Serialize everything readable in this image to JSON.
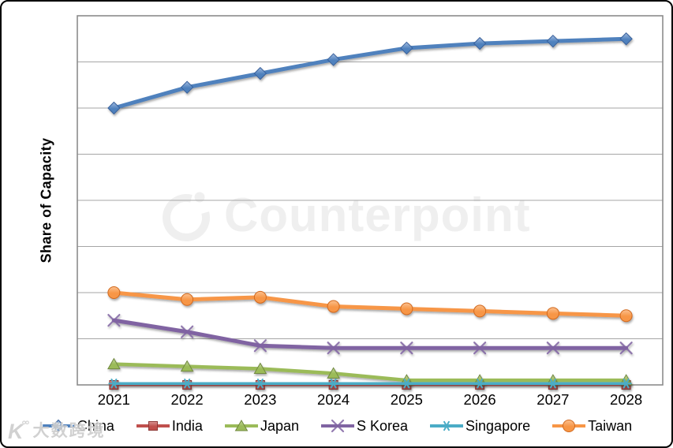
{
  "watermarks": {
    "center_brand": "Counterpoint",
    "footer_logo_main": "K",
    "footer_logo_sup": "°°",
    "footer_text": "大数跨境"
  },
  "chart_data": {
    "type": "line",
    "title": "",
    "ylabel": "Share of Capacity",
    "xlabel": "",
    "x": [
      "2021",
      "2022",
      "2023",
      "2024",
      "2025",
      "2026",
      "2027",
      "2028"
    ],
    "ylim": [
      0,
      80
    ],
    "y_gridline_step": 10,
    "y_tick_labels_visible": false,
    "grid": true,
    "legend_position": "bottom",
    "grid_color": "#a6a6a6",
    "border_color": "#8c8c8c",
    "series": [
      {
        "name": "China",
        "marker": "diamond",
        "color": "#4F81BD",
        "dark": "#38619C",
        "light": "#A3BCE0",
        "values": [
          60,
          64.5,
          67.5,
          70.5,
          73,
          74,
          74.5,
          75
        ]
      },
      {
        "name": "India",
        "marker": "square",
        "color": "#C0504D",
        "dark": "#8E3836",
        "light": "#D99694",
        "values": [
          0,
          0,
          0,
          0,
          0,
          0,
          0,
          0
        ]
      },
      {
        "name": "Japan",
        "marker": "triangle",
        "color": "#9BBB59",
        "dark": "#71893F",
        "light": "#C6D8A0",
        "values": [
          4.5,
          4,
          3.5,
          2.5,
          1,
          1,
          1,
          1
        ]
      },
      {
        "name": "S Korea",
        "marker": "x",
        "color": "#8064A2",
        "dark": "#5E4A78",
        "light": "#B2A2C7",
        "values": [
          14,
          11.5,
          8.5,
          8,
          8,
          8,
          8,
          8
        ]
      },
      {
        "name": "Singapore",
        "marker": "asterisk",
        "color": "#4BACC6",
        "dark": "#357D91",
        "light": "#92CDDC",
        "values": [
          0.3,
          0.3,
          0.3,
          0.3,
          0.3,
          0.3,
          0.3,
          0.3
        ]
      },
      {
        "name": "Taiwan",
        "marker": "circle",
        "color": "#F79646",
        "dark": "#D2691E",
        "light": "#FBC08F",
        "values": [
          20,
          18.5,
          19,
          17,
          16.5,
          16,
          15.5,
          15
        ]
      }
    ]
  }
}
